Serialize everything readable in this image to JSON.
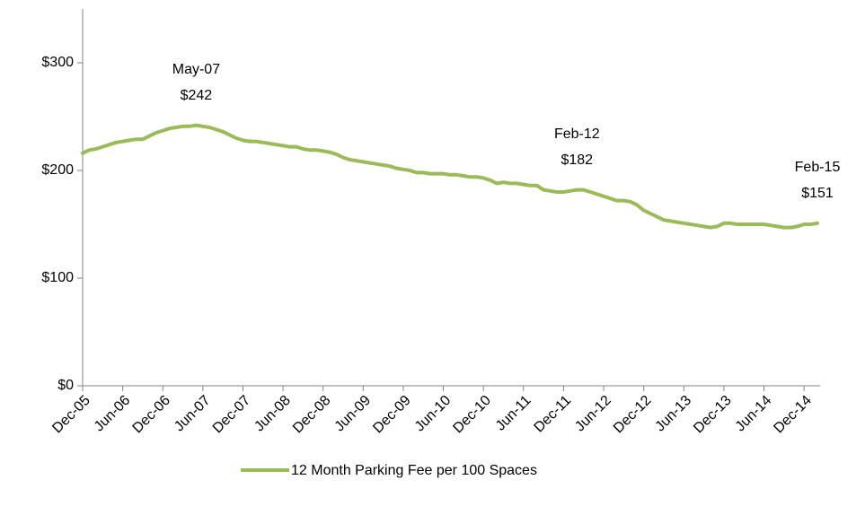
{
  "chart_data": {
    "type": "line",
    "categories": [
      "Dec-05",
      null,
      null,
      null,
      null,
      null,
      "Jun-06",
      null,
      null,
      null,
      null,
      null,
      "Dec-06",
      null,
      null,
      null,
      null,
      null,
      "Jun-07",
      null,
      null,
      null,
      null,
      null,
      "Dec-07",
      null,
      null,
      null,
      null,
      null,
      "Jun-08",
      null,
      null,
      null,
      null,
      null,
      "Dec-08",
      null,
      null,
      null,
      null,
      null,
      "Jun-09",
      null,
      null,
      null,
      null,
      null,
      "Dec-09",
      null,
      null,
      null,
      null,
      null,
      "Jun-10",
      null,
      null,
      null,
      null,
      null,
      "Dec-10",
      null,
      null,
      null,
      null,
      null,
      "Jun-11",
      null,
      null,
      null,
      null,
      null,
      "Dec-11",
      null,
      null,
      null,
      null,
      null,
      "Jun-12",
      null,
      null,
      null,
      null,
      null,
      "Dec-12",
      null,
      null,
      null,
      null,
      null,
      "Jun-13",
      null,
      null,
      null,
      null,
      null,
      "Dec-13",
      null,
      null,
      null,
      null,
      null,
      "Jun-14",
      null,
      null,
      null,
      null,
      null,
      "Dec-14",
      null,
      null
    ],
    "series": [
      {
        "name": "12 Month Parking Fee per 100 Spaces",
        "color": "#9bbb59",
        "values": [
          216,
          219,
          220,
          222,
          224,
          226,
          227,
          228,
          229,
          229,
          232,
          235,
          237,
          239,
          240,
          241,
          241,
          242,
          241,
          240,
          238,
          236,
          233,
          230,
          228,
          227,
          227,
          226,
          225,
          224,
          223,
          222,
          222,
          220,
          219,
          219,
          218,
          217,
          215,
          212,
          210,
          209,
          208,
          207,
          206,
          205,
          204,
          202,
          201,
          200,
          198,
          198,
          197,
          197,
          197,
          196,
          196,
          195,
          194,
          194,
          193,
          191,
          188,
          189,
          188,
          188,
          187,
          186,
          186,
          182,
          181,
          180,
          180,
          181,
          182,
          182,
          180,
          178,
          176,
          174,
          172,
          172,
          171,
          168,
          163,
          160,
          157,
          154,
          153,
          152,
          151,
          150,
          149,
          148,
          147,
          148,
          151,
          151,
          150,
          150,
          150,
          150,
          150,
          149,
          148,
          147,
          147,
          148,
          150,
          150,
          151
        ]
      }
    ],
    "annotations": [
      {
        "x": "May-07",
        "label": "$242",
        "value": 242
      },
      {
        "x": "Feb-12",
        "label": "$182",
        "value": 182
      },
      {
        "x": "Feb-15",
        "label": "$151",
        "value": 151
      }
    ],
    "ylim": [
      0,
      350
    ],
    "yticks": [
      {
        "value": 0,
        "label": "$0"
      },
      {
        "value": 100,
        "label": "$100"
      },
      {
        "value": 200,
        "label": "$200"
      },
      {
        "value": 300,
        "label": "$300"
      }
    ],
    "grid": false,
    "legend": "bottom"
  }
}
